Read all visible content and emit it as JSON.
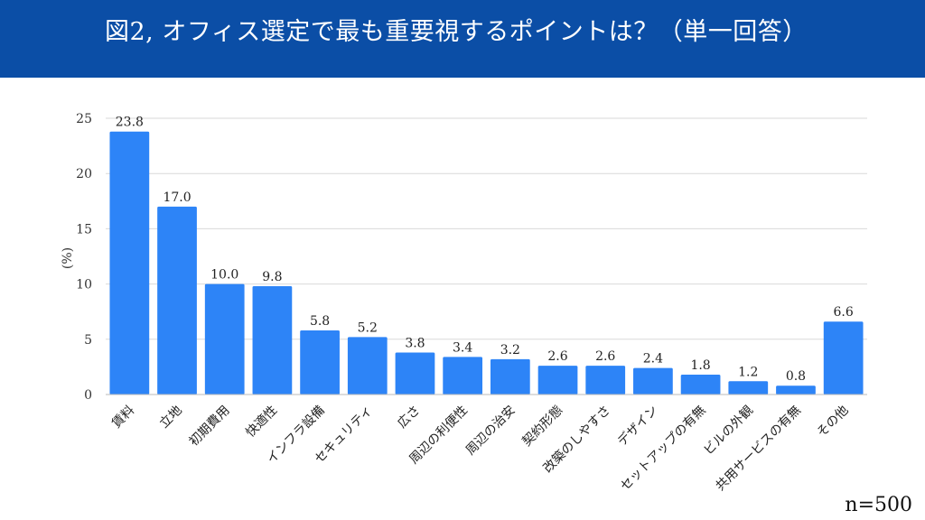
{
  "header": {
    "title": "図2, オフィス選定で最も重要視するポイントは？（単一回答）",
    "background": "#0b4ea6"
  },
  "note": {
    "sample_size": "n=500"
  },
  "chart_data": {
    "type": "bar",
    "title": "図2, オフィス選定で最も重要視するポイントは？（単一回答）",
    "xlabel": "",
    "ylabel": "(%)",
    "ylim": [
      0,
      25
    ],
    "yticks": [
      0,
      5,
      10,
      15,
      20,
      25
    ],
    "grid": true,
    "bar_color": "#2d84f7",
    "categories": [
      "賃料",
      "立地",
      "初期費用",
      "快適性",
      "インフラ設備",
      "セキュリティ",
      "広さ",
      "周辺の利便性",
      "周辺の治安",
      "契約形態",
      "改築のしやすさ",
      "デザイン",
      "セットアップの有無",
      "ビルの外観",
      "共用サービスの有無",
      "その他"
    ],
    "values": [
      23.8,
      17.0,
      10.0,
      9.8,
      5.8,
      5.2,
      3.8,
      3.4,
      3.2,
      2.6,
      2.6,
      2.4,
      1.8,
      1.2,
      0.8,
      6.6
    ],
    "value_labels": [
      "23.8",
      "17.0",
      "10.0",
      "9.8",
      "5.8",
      "5.2",
      "3.8",
      "3.4",
      "3.2",
      "2.6",
      "2.6",
      "2.4",
      "1.8",
      "1.2",
      "0.8",
      "6.6"
    ]
  }
}
